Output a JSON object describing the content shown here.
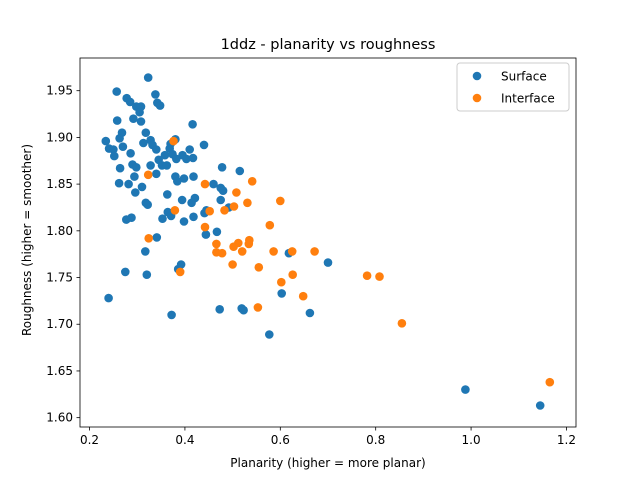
{
  "chart_data": {
    "type": "scatter",
    "title": "1ddz - planarity vs roughness",
    "xlabel": "Planarity (higher = more planar)",
    "ylabel": "Roughness (higher = smoother)",
    "xlim": [
      0.18,
      1.22
    ],
    "ylim": [
      1.59,
      1.985
    ],
    "xticks": [
      "0.2",
      "0.4",
      "0.6",
      "0.8",
      "1.0",
      "1.2"
    ],
    "yticks": [
      "1.60",
      "1.65",
      "1.70",
      "1.75",
      "1.80",
      "1.85",
      "1.90",
      "1.95"
    ],
    "legend_position": "top-right",
    "grid": false,
    "series": [
      {
        "name": "Surface",
        "color": "#1f77b4",
        "points": [
          [
            0.323,
            1.964
          ],
          [
            0.257,
            1.949
          ],
          [
            0.338,
            1.946
          ],
          [
            0.278,
            1.942
          ],
          [
            0.285,
            1.938
          ],
          [
            0.298,
            1.933
          ],
          [
            0.308,
            1.933
          ],
          [
            0.342,
            1.937
          ],
          [
            0.348,
            1.934
          ],
          [
            0.305,
            1.927
          ],
          [
            0.258,
            1.918
          ],
          [
            0.308,
            1.917
          ],
          [
            0.292,
            1.92
          ],
          [
            0.416,
            1.914
          ],
          [
            0.268,
            1.905
          ],
          [
            0.318,
            1.905
          ],
          [
            0.263,
            1.899
          ],
          [
            0.234,
            1.896
          ],
          [
            0.328,
            1.897
          ],
          [
            0.38,
            1.898
          ],
          [
            0.37,
            1.893
          ],
          [
            0.313,
            1.894
          ],
          [
            0.332,
            1.892
          ],
          [
            0.44,
            1.892
          ],
          [
            0.241,
            1.888
          ],
          [
            0.25,
            1.887
          ],
          [
            0.27,
            1.89
          ],
          [
            0.34,
            1.887
          ],
          [
            0.368,
            1.888
          ],
          [
            0.41,
            1.887
          ],
          [
            0.252,
            1.88
          ],
          [
            0.286,
            1.883
          ],
          [
            0.358,
            1.881
          ],
          [
            0.374,
            1.882
          ],
          [
            0.395,
            1.881
          ],
          [
            0.345,
            1.876
          ],
          [
            0.382,
            1.877
          ],
          [
            0.403,
            1.877
          ],
          [
            0.417,
            1.878
          ],
          [
            0.328,
            1.87
          ],
          [
            0.29,
            1.871
          ],
          [
            0.298,
            1.868
          ],
          [
            0.264,
            1.867
          ],
          [
            0.352,
            1.87
          ],
          [
            0.362,
            1.87
          ],
          [
            0.478,
            1.868
          ],
          [
            0.515,
            1.864
          ],
          [
            0.34,
            1.861
          ],
          [
            0.294,
            1.858
          ],
          [
            0.38,
            1.858
          ],
          [
            0.418,
            1.858
          ],
          [
            0.398,
            1.856
          ],
          [
            0.384,
            1.853
          ],
          [
            0.262,
            1.851
          ],
          [
            0.282,
            1.85
          ],
          [
            0.46,
            1.85
          ],
          [
            0.31,
            1.847
          ],
          [
            0.475,
            1.846
          ],
          [
            0.48,
            1.843
          ],
          [
            0.296,
            1.841
          ],
          [
            0.363,
            1.839
          ],
          [
            0.421,
            1.835
          ],
          [
            0.394,
            1.833
          ],
          [
            0.475,
            1.833
          ],
          [
            0.414,
            1.83
          ],
          [
            0.318,
            1.83
          ],
          [
            0.322,
            1.828
          ],
          [
            0.445,
            1.822
          ],
          [
            0.492,
            1.825
          ],
          [
            0.364,
            1.82
          ],
          [
            0.441,
            1.819
          ],
          [
            0.353,
            1.813
          ],
          [
            0.371,
            1.816
          ],
          [
            0.418,
            1.815
          ],
          [
            0.288,
            1.814
          ],
          [
            0.277,
            1.812
          ],
          [
            0.398,
            1.81
          ],
          [
            0.467,
            1.799
          ],
          [
            0.444,
            1.796
          ],
          [
            0.341,
            1.793
          ],
          [
            0.317,
            1.778
          ],
          [
            0.618,
            1.776
          ],
          [
            0.7,
            1.766
          ],
          [
            0.392,
            1.764
          ],
          [
            0.386,
            1.759
          ],
          [
            0.275,
            1.756
          ],
          [
            0.32,
            1.753
          ],
          [
            0.603,
            1.733
          ],
          [
            0.24,
            1.728
          ],
          [
            0.519,
            1.717
          ],
          [
            0.523,
            1.715
          ],
          [
            0.473,
            1.716
          ],
          [
            0.662,
            1.712
          ],
          [
            0.372,
            1.71
          ],
          [
            0.577,
            1.689
          ],
          [
            0.988,
            1.63
          ],
          [
            1.145,
            1.613
          ]
        ]
      },
      {
        "name": "Interface",
        "color": "#ff7f0e",
        "points": [
          [
            0.376,
            1.896
          ],
          [
            0.323,
            1.86
          ],
          [
            0.541,
            1.853
          ],
          [
            0.442,
            1.85
          ],
          [
            0.508,
            1.841
          ],
          [
            0.6,
            1.832
          ],
          [
            0.531,
            1.83
          ],
          [
            0.503,
            1.826
          ],
          [
            0.483,
            1.822
          ],
          [
            0.379,
            1.822
          ],
          [
            0.452,
            1.821
          ],
          [
            0.442,
            1.804
          ],
          [
            0.324,
            1.792
          ],
          [
            0.512,
            1.787
          ],
          [
            0.534,
            1.786
          ],
          [
            0.535,
            1.79
          ],
          [
            0.466,
            1.786
          ],
          [
            0.502,
            1.783
          ],
          [
            0.52,
            1.778
          ],
          [
            0.578,
            1.806
          ],
          [
            0.625,
            1.778
          ],
          [
            0.672,
            1.778
          ],
          [
            0.466,
            1.777
          ],
          [
            0.478,
            1.776
          ],
          [
            0.586,
            1.778
          ],
          [
            0.5,
            1.764
          ],
          [
            0.555,
            1.761
          ],
          [
            0.39,
            1.756
          ],
          [
            0.626,
            1.753
          ],
          [
            0.782,
            1.752
          ],
          [
            0.808,
            1.751
          ],
          [
            0.602,
            1.745
          ],
          [
            0.648,
            1.73
          ],
          [
            0.553,
            1.718
          ],
          [
            0.855,
            1.701
          ],
          [
            1.165,
            1.638
          ]
        ]
      }
    ]
  }
}
